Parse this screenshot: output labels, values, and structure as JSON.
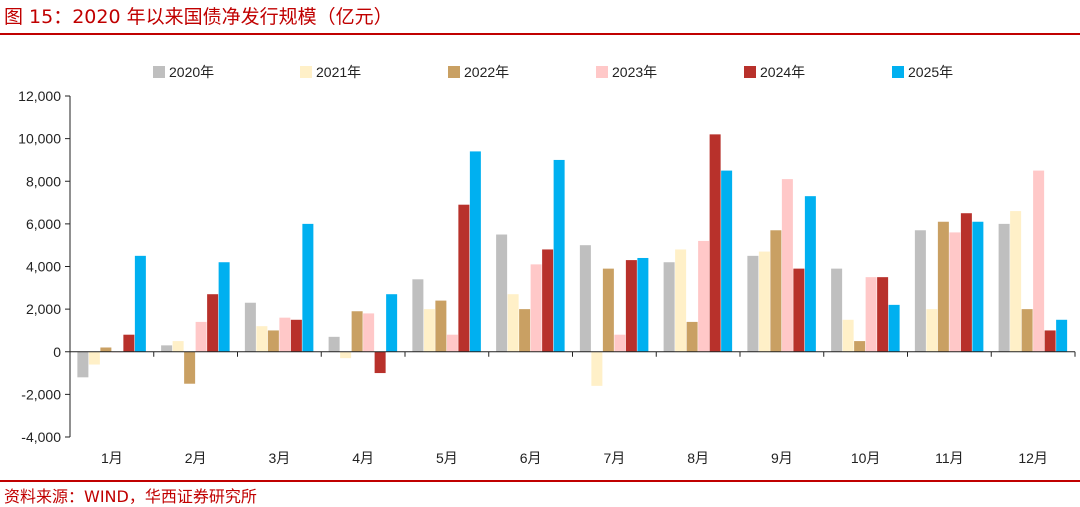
{
  "header": {
    "title": "图 15：2020 年以来国债净发行规模（亿元）"
  },
  "footer": {
    "source": "资料来源：WIND，华西证券研究所"
  },
  "chart_data": {
    "type": "bar",
    "title": "图 15：2020 年以来国债净发行规模（亿元）",
    "xlabel": "",
    "ylabel": "",
    "categories": [
      "1月",
      "2月",
      "3月",
      "4月",
      "5月",
      "6月",
      "7月",
      "8月",
      "9月",
      "10月",
      "11月",
      "12月"
    ],
    "ylim": [
      -4000,
      12000
    ],
    "yticks": [
      -4000,
      -2000,
      0,
      2000,
      4000,
      6000,
      8000,
      10000,
      12000
    ],
    "ytick_labels": [
      "-4,000",
      "-2,000",
      "0",
      "2,000",
      "4,000",
      "6,000",
      "8,000",
      "10,000",
      "12,000"
    ],
    "grid": false,
    "legend_position": "top",
    "series": [
      {
        "name": "2020年",
        "color": "#bfbfbf",
        "values": [
          -1200,
          300,
          2300,
          700,
          3400,
          5500,
          5000,
          4200,
          4500,
          3900,
          5700,
          6000
        ]
      },
      {
        "name": "2021年",
        "color": "#fff0c8",
        "values": [
          -600,
          500,
          1200,
          -300,
          2000,
          2700,
          -1600,
          4800,
          4700,
          1500,
          2000,
          6600
        ]
      },
      {
        "name": "2022年",
        "color": "#c9a063",
        "values": [
          200,
          -1500,
          1000,
          1900,
          2400,
          2000,
          3900,
          1400,
          5700,
          500,
          6100,
          2000
        ]
      },
      {
        "name": "2023年",
        "color": "#ffc8c8",
        "values": [
          0,
          1400,
          1600,
          1800,
          800,
          4100,
          800,
          5200,
          8100,
          3500,
          5600,
          8500
        ]
      },
      {
        "name": "2024年",
        "color": "#b8312b",
        "values": [
          800,
          2700,
          1500,
          -1000,
          6900,
          4800,
          4300,
          10200,
          3900,
          3500,
          6500,
          1000
        ]
      },
      {
        "name": "2025年",
        "color": "#00b0f0",
        "values": [
          4500,
          4200,
          6000,
          2700,
          9400,
          9000,
          4400,
          8500,
          7300,
          2200,
          6100,
          1500
        ]
      }
    ]
  }
}
